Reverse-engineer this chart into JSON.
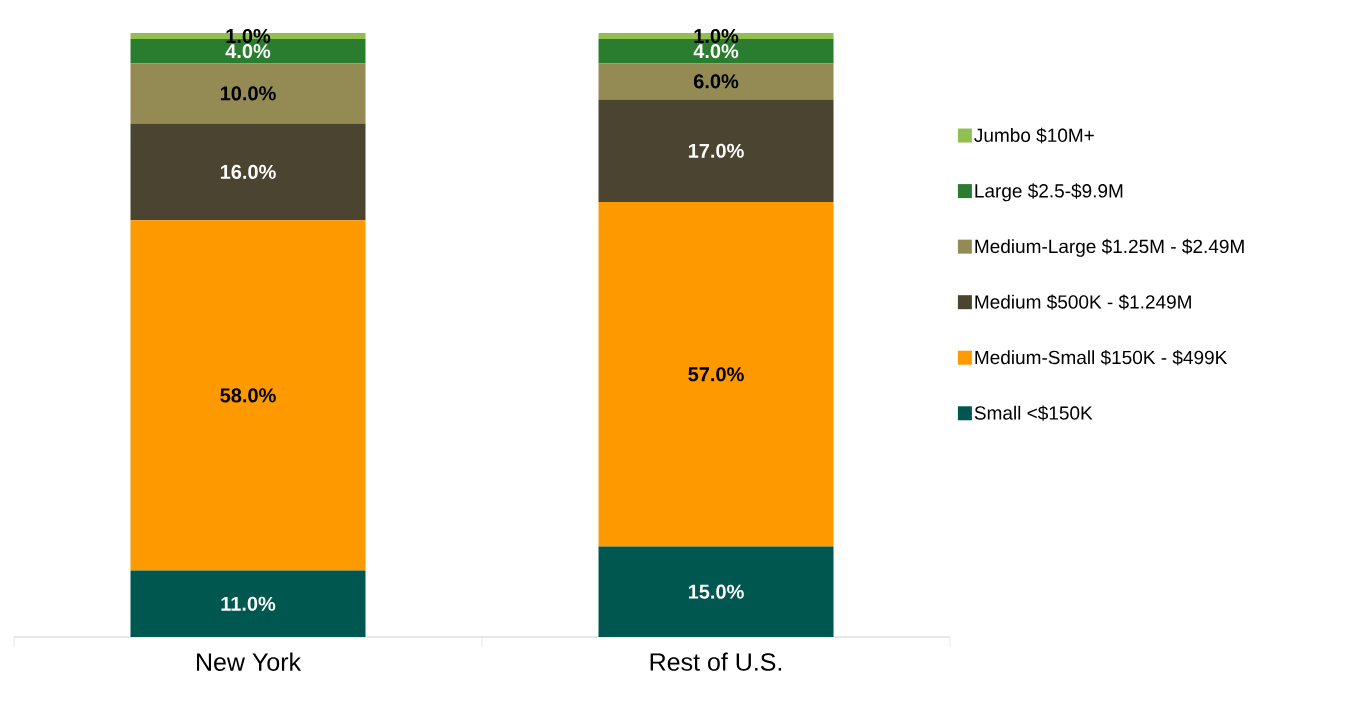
{
  "chart_data": {
    "type": "bar",
    "stacked": true,
    "categories": [
      "New York",
      "Rest of U.S."
    ],
    "series": [
      {
        "name": "Small <$150K",
        "color": "#00574f",
        "values": [
          11.0,
          15.0
        ],
        "value_labels": [
          "11.0%",
          "15.0%"
        ]
      },
      {
        "name": "Medium-Small $150K - $499K",
        "color": "#ff9900",
        "values": [
          58.0,
          57.0
        ],
        "value_labels": [
          "58.0%",
          "57.0%"
        ]
      },
      {
        "name": "Medium $500K - $1.249M",
        "color": "#4a4430",
        "values": [
          16.0,
          17.0
        ],
        "value_labels": [
          "16.0%",
          "17.0%"
        ]
      },
      {
        "name": "Medium-Large $1.25M - $2.49M",
        "color": "#948b54",
        "values": [
          10.0,
          6.0
        ],
        "value_labels": [
          "10.0%",
          "6.0%"
        ]
      },
      {
        "name": "Large $2.5-$9.9M",
        "color": "#2a7d2e",
        "values": [
          4.0,
          4.0
        ],
        "value_labels": [
          "4.0%",
          "4.0%"
        ]
      },
      {
        "name": "Jumbo $10M+",
        "color": "#92c050",
        "values": [
          1.0,
          1.0
        ],
        "value_labels": [
          "1.0%",
          "1.0%"
        ]
      }
    ],
    "legend": "right"
  }
}
